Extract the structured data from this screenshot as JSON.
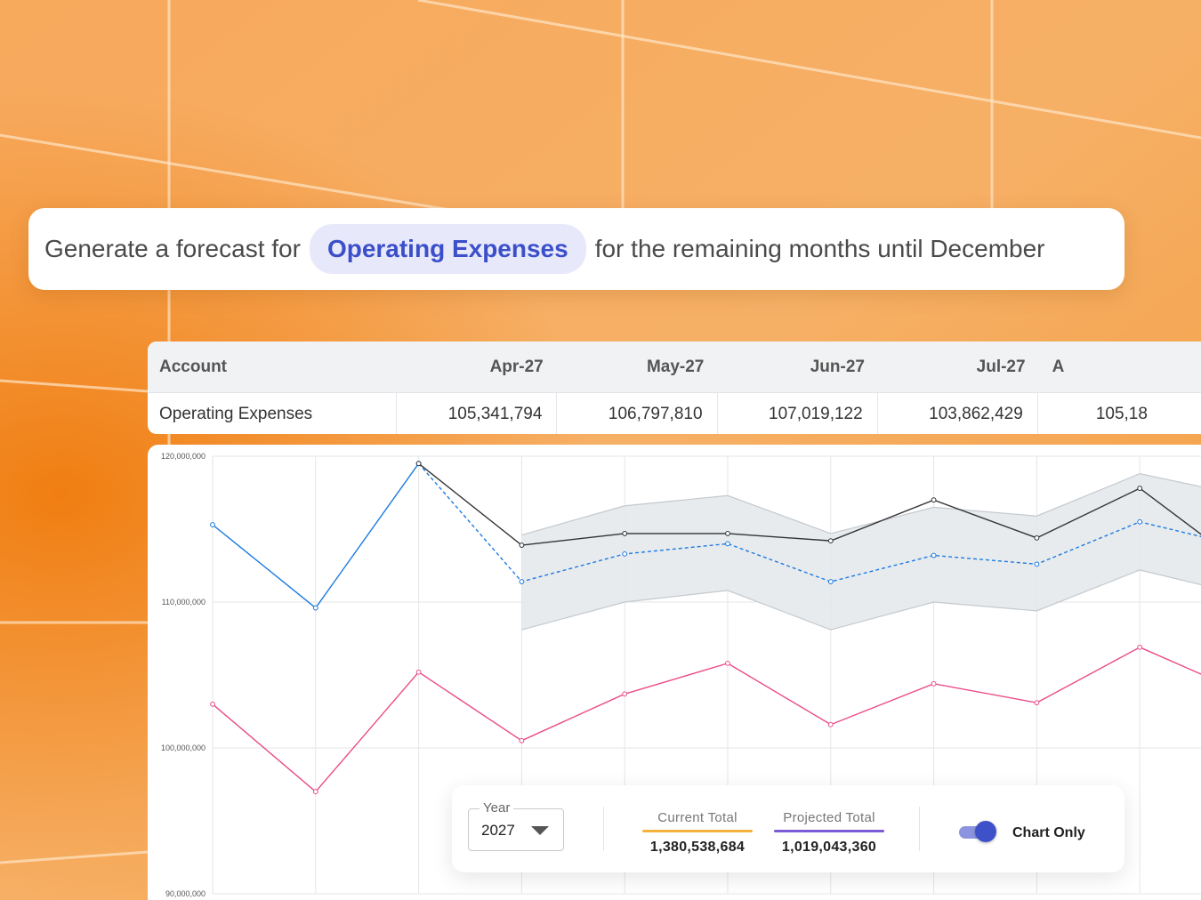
{
  "prompt": {
    "prefix": "Generate a forecast for",
    "chip": "Operating Expenses",
    "suffix": "for the remaining months until December"
  },
  "table": {
    "header": [
      "Account",
      "Apr-27",
      "May-27",
      "Jun-27",
      "Jul-27",
      "A"
    ],
    "rows": [
      [
        "Operating Expenses",
        "105,341,794",
        "106,797,810",
        "107,019,122",
        "103,862,429",
        "105,18"
      ]
    ]
  },
  "controls": {
    "year_label": "Year",
    "year_value": "2027",
    "current_total_label": "Current Total",
    "current_total_value": "1,380,538,684",
    "current_total_color": "#f5b13b",
    "projected_total_label": "Projected Total",
    "projected_total_value": "1,019,043,360",
    "projected_total_color": "#7b5bd6",
    "toggle_label": "Chart Only",
    "toggle_on": true
  },
  "chart_data": {
    "type": "line",
    "x": [
      1,
      2,
      3,
      4,
      5,
      6,
      7,
      8,
      9,
      10,
      11,
      12
    ],
    "ylim": [
      90000000,
      120000000
    ],
    "yticks": [
      "120,000,000",
      "110,000,000",
      "100,000,000",
      "90,000,000"
    ],
    "grid": true,
    "series": [
      {
        "style": "actual",
        "color": "#1e7be0",
        "values": [
          115300000,
          109600000,
          119500000,
          null,
          null,
          null,
          null,
          null,
          null,
          null,
          null,
          null
        ]
      },
      {
        "style": "forecast-dashed",
        "color": "#1e7be0",
        "values": [
          null,
          null,
          119500000,
          111400000,
          113300000,
          114000000,
          111400000,
          113200000,
          112600000,
          115500000,
          113800000,
          null
        ]
      },
      {
        "style": "dark",
        "color": "#333333",
        "values": [
          null,
          null,
          119500000,
          113900000,
          114700000,
          114700000,
          114200000,
          117000000,
          114400000,
          117800000,
          112500000,
          null
        ]
      },
      {
        "style": "pink",
        "color": "#ea4c89",
        "values": [
          103000000,
          97000000,
          105200000,
          100500000,
          103700000,
          105800000,
          101600000,
          104400000,
          103100000,
          106900000,
          103800000,
          null
        ]
      }
    ],
    "band": {
      "color": "#e3e7eb",
      "upper": [
        null,
        null,
        null,
        114600000,
        116600000,
        117300000,
        114700000,
        116500000,
        115900000,
        118800000,
        117300000,
        null
      ],
      "lower": [
        null,
        null,
        null,
        108100000,
        110000000,
        110800000,
        108100000,
        110000000,
        109400000,
        112200000,
        110500000,
        null
      ]
    }
  }
}
